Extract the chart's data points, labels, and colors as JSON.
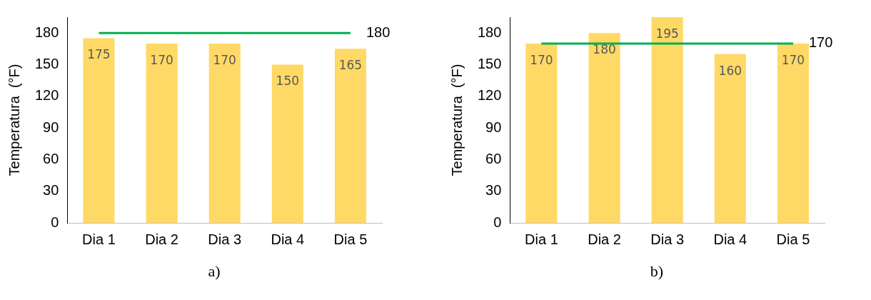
{
  "chart_data": [
    {
      "type": "bar",
      "ylabel": "Temperatura  (°F)",
      "categories": [
        "Dia 1",
        "Dia 2",
        "Dia 3",
        "Dia 4",
        "Dia 5"
      ],
      "values": [
        175,
        170,
        170,
        150,
        165
      ],
      "color": "#ffd966",
      "ylim": [
        0,
        195
      ],
      "yticks": [
        0,
        30,
        60,
        90,
        120,
        150,
        180
      ],
      "grid": false,
      "legend": false,
      "data_labels": true,
      "ref_lines": [
        {
          "axis": "y",
          "value": 180,
          "label": "180",
          "color": "#00b050"
        }
      ],
      "annotations": [
        "a)"
      ]
    },
    {
      "type": "bar",
      "ylabel": "Temperatura  (°F)",
      "categories": [
        "Dia 1",
        "Dia 2",
        "Dia 3",
        "Dia 4",
        "Dia 5"
      ],
      "values": [
        170,
        180,
        195,
        160,
        170
      ],
      "color": "#ffd966",
      "ylim": [
        0,
        195
      ],
      "yticks": [
        0,
        30,
        60,
        90,
        120,
        150,
        180
      ],
      "grid": false,
      "legend": false,
      "data_labels": true,
      "ref_lines": [
        {
          "axis": "y",
          "value": 170,
          "label": "170",
          "color": "#00b050"
        }
      ],
      "annotations": [
        "b)"
      ]
    }
  ]
}
